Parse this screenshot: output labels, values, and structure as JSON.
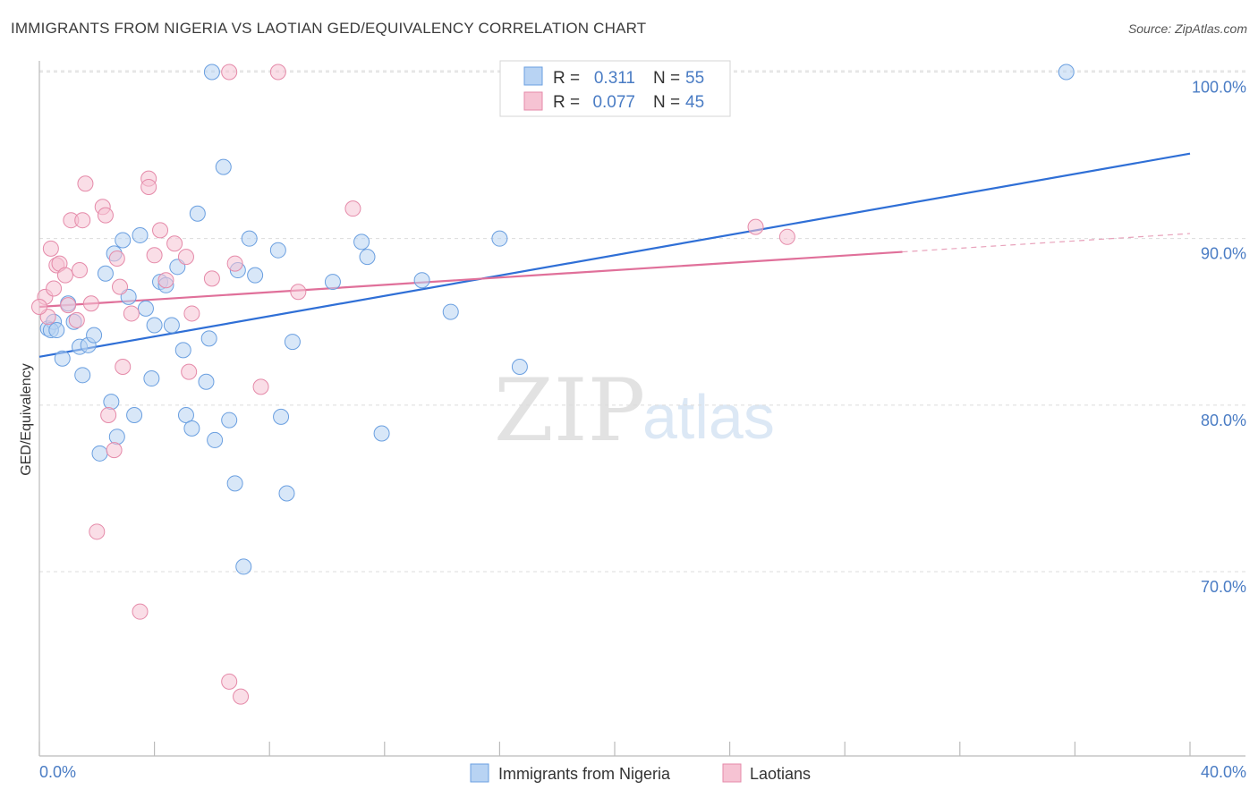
{
  "header": {
    "title": "IMMIGRANTS FROM NIGERIA VS LAOTIAN GED/EQUIVALENCY CORRELATION CHART",
    "source": "Source: ZipAtlas.com"
  },
  "watermark": {
    "zip": "ZIP",
    "atlas": "atlas"
  },
  "colors": {
    "blue": "#4a86d8",
    "blue_fill": "#b8d3f3",
    "pink": "#e0709a",
    "pink_fill": "#f6c3d3",
    "label": "#4a7cc4"
  },
  "legend": {
    "rows": [
      {
        "r_label": "R =",
        "r_value": "0.311",
        "n_label": "N =",
        "n_value": "55"
      },
      {
        "r_label": "R =",
        "r_value": "0.077",
        "n_label": "N =",
        "n_value": "45"
      }
    ]
  },
  "chart_data": {
    "type": "scatter",
    "title": "IMMIGRANTS FROM NIGERIA VS LAOTIAN GED/EQUIVALENCY CORRELATION CHART",
    "xlabel": "",
    "ylabel": "GED/Equivalency",
    "xlim": [
      0,
      40
    ],
    "ylim": [
      60.5,
      102.5
    ],
    "x_tick_labels": [
      "0.0%",
      "40.0%"
    ],
    "y_ticks": [
      70,
      80,
      90,
      100
    ],
    "y_tick_labels": [
      "70.0%",
      "80.0%",
      "90.0%",
      "100.0%"
    ],
    "grid": true,
    "legend_position": "top-center",
    "series": [
      {
        "name": "Immigrants from Nigeria",
        "color": "#4a86d8",
        "trend": {
          "x": [
            0,
            40
          ],
          "y": [
            82.9,
            95.1
          ]
        },
        "points": [
          [
            0.3,
            84.6
          ],
          [
            0.5,
            85.0
          ],
          [
            0.4,
            84.5
          ],
          [
            0.6,
            84.5
          ],
          [
            0.8,
            82.8
          ],
          [
            1.0,
            86.1
          ],
          [
            1.2,
            85.0
          ],
          [
            1.4,
            83.5
          ],
          [
            1.5,
            81.8
          ],
          [
            1.7,
            83.6
          ],
          [
            1.9,
            84.2
          ],
          [
            2.1,
            77.1
          ],
          [
            2.3,
            87.9
          ],
          [
            2.5,
            80.2
          ],
          [
            2.6,
            89.1
          ],
          [
            2.7,
            78.1
          ],
          [
            2.9,
            89.9
          ],
          [
            3.1,
            86.5
          ],
          [
            3.3,
            79.4
          ],
          [
            3.5,
            90.2
          ],
          [
            3.7,
            85.8
          ],
          [
            3.9,
            81.6
          ],
          [
            4.0,
            84.8
          ],
          [
            4.2,
            87.4
          ],
          [
            4.4,
            87.2
          ],
          [
            4.6,
            84.8
          ],
          [
            4.8,
            88.3
          ],
          [
            5.0,
            83.3
          ],
          [
            5.1,
            79.4
          ],
          [
            5.3,
            78.6
          ],
          [
            5.5,
            91.5
          ],
          [
            5.8,
            81.4
          ],
          [
            5.9,
            84.0
          ],
          [
            6.0,
            100.0
          ],
          [
            6.1,
            77.9
          ],
          [
            6.4,
            94.3
          ],
          [
            6.6,
            79.1
          ],
          [
            6.8,
            75.3
          ],
          [
            6.9,
            88.1
          ],
          [
            7.1,
            70.3
          ],
          [
            7.3,
            90.0
          ],
          [
            7.5,
            87.8
          ],
          [
            8.3,
            89.3
          ],
          [
            8.4,
            79.3
          ],
          [
            8.6,
            74.7
          ],
          [
            8.8,
            83.8
          ],
          [
            10.2,
            87.4
          ],
          [
            11.2,
            89.8
          ],
          [
            11.4,
            88.9
          ],
          [
            11.9,
            78.3
          ],
          [
            13.3,
            87.5
          ],
          [
            14.3,
            85.6
          ],
          [
            16.0,
            90.0
          ],
          [
            16.7,
            82.3
          ],
          [
            35.7,
            100.0
          ]
        ]
      },
      {
        "name": "Laotians",
        "color": "#e0709a",
        "trend": {
          "x": [
            0,
            30.0
          ],
          "y": [
            85.9,
            89.2
          ]
        },
        "trend_dashed": {
          "x": [
            30.0,
            40
          ],
          "y": [
            89.2,
            90.3
          ]
        },
        "points": [
          [
            0.2,
            86.5
          ],
          [
            0.3,
            85.3
          ],
          [
            0.4,
            89.4
          ],
          [
            0.5,
            87.0
          ],
          [
            0.6,
            88.4
          ],
          [
            0.7,
            88.5
          ],
          [
            0.9,
            87.8
          ],
          [
            1.0,
            86.0
          ],
          [
            1.1,
            91.1
          ],
          [
            1.3,
            85.1
          ],
          [
            1.4,
            88.1
          ],
          [
            1.5,
            91.1
          ],
          [
            1.6,
            93.3
          ],
          [
            1.8,
            86.1
          ],
          [
            2.0,
            72.4
          ],
          [
            2.2,
            91.9
          ],
          [
            2.3,
            91.4
          ],
          [
            2.4,
            79.4
          ],
          [
            2.6,
            77.3
          ],
          [
            2.7,
            88.8
          ],
          [
            2.8,
            87.1
          ],
          [
            2.9,
            82.3
          ],
          [
            3.2,
            85.5
          ],
          [
            3.5,
            67.6
          ],
          [
            3.8,
            93.6
          ],
          [
            3.8,
            93.1
          ],
          [
            4.0,
            89.0
          ],
          [
            4.2,
            90.5
          ],
          [
            4.4,
            87.5
          ],
          [
            4.7,
            89.7
          ],
          [
            5.1,
            88.9
          ],
          [
            5.2,
            82.0
          ],
          [
            5.3,
            85.5
          ],
          [
            6.0,
            87.6
          ],
          [
            6.6,
            100.0
          ],
          [
            6.6,
            63.4
          ],
          [
            6.8,
            88.5
          ],
          [
            7.0,
            62.5
          ],
          [
            7.7,
            81.1
          ],
          [
            8.3,
            100.0
          ],
          [
            9.0,
            86.8
          ],
          [
            10.9,
            91.8
          ],
          [
            24.9,
            90.7
          ],
          [
            26.0,
            90.1
          ],
          [
            0.0,
            85.9
          ]
        ]
      }
    ]
  }
}
